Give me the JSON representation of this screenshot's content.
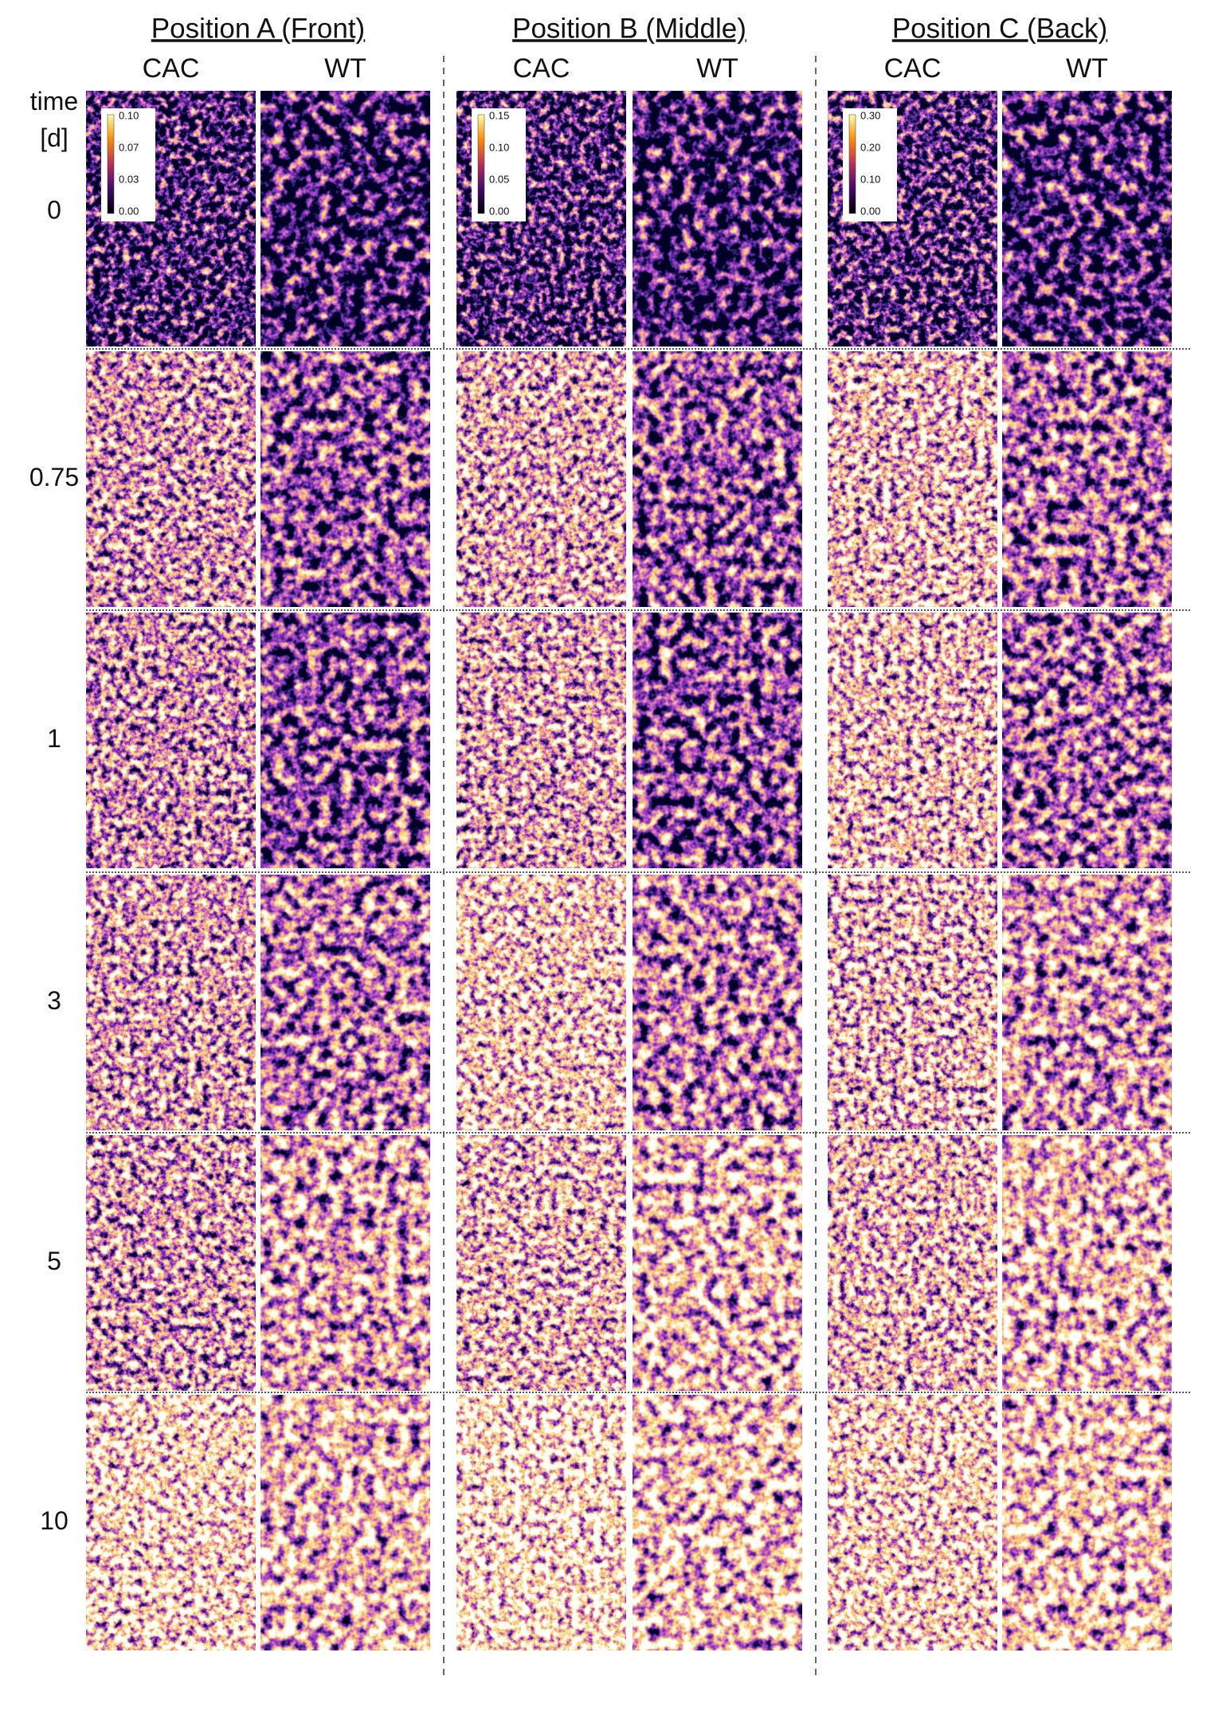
{
  "positions": [
    {
      "title": "Position A (Front)",
      "columns": [
        "CAC",
        "WT"
      ],
      "colorbar": [
        "0.10",
        "0.07",
        "0.03",
        "0.00"
      ]
    },
    {
      "title": "Position B (Middle)",
      "columns": [
        "CAC",
        "WT"
      ],
      "colorbar": [
        "0.15",
        "0.10",
        "0.05",
        "0.00"
      ]
    },
    {
      "title": "Position C (Back)",
      "columns": [
        "CAC",
        "WT"
      ],
      "colorbar": [
        "0.30",
        "0.20",
        "0.10",
        "0.00"
      ]
    }
  ],
  "time_label": [
    "time",
    "[d]"
  ],
  "rows": [
    "0",
    "0.75",
    "1",
    "3",
    "5",
    "10"
  ]
}
